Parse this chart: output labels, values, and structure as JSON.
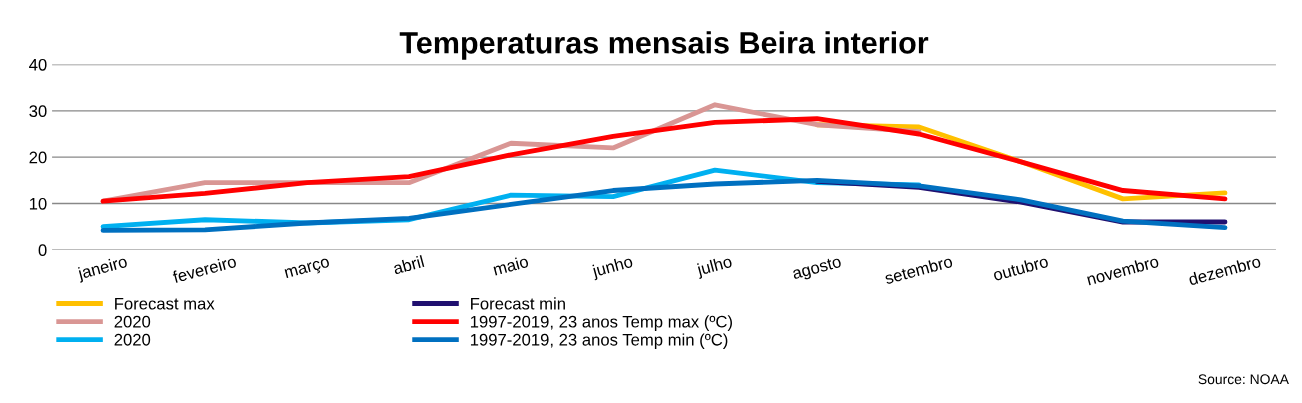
{
  "chart_data": {
    "type": "line",
    "title": "Temperaturas mensais Beira interior",
    "categories": [
      "janeiro",
      "fevereiro",
      "março",
      "abril",
      "maio",
      "junho",
      "julho",
      "agosto",
      "setembro",
      "outubro",
      "novembro",
      "dezembro"
    ],
    "series": [
      {
        "name": "Forecast max",
        "color": "#ffc000",
        "values": [
          null,
          null,
          null,
          null,
          null,
          null,
          null,
          27,
          26.5,
          19,
          11,
          12.3
        ]
      },
      {
        "name": "2020",
        "color": "#d99694",
        "values": [
          10.5,
          14.5,
          14.5,
          14.5,
          23,
          22,
          31.3,
          27,
          25.5,
          null,
          null,
          null
        ]
      },
      {
        "name": "2020",
        "color": "#00b0f0",
        "values": [
          5,
          6.5,
          5.8,
          6.5,
          11.8,
          11.5,
          17.2,
          14.5,
          14,
          null,
          null,
          null
        ]
      },
      {
        "name": "Forecast min",
        "color": "#201070",
        "values": [
          null,
          null,
          null,
          null,
          null,
          null,
          null,
          14.8,
          13.5,
          10.3,
          6,
          6
        ]
      },
      {
        "name": "1997-2019, 23 anos Temp max (ºC)",
        "color": "#ff0000",
        "values": [
          10.5,
          12.2,
          14.5,
          15.8,
          20.5,
          24.5,
          27.5,
          28.3,
          25,
          19,
          12.8,
          11
        ]
      },
      {
        "name": "1997-2019, 23 anos Temp min (ºC)",
        "color": "#0070c0",
        "values": [
          4.2,
          4.3,
          5.8,
          6.8,
          9.8,
          12.8,
          14.2,
          15,
          13.8,
          10.8,
          6.2,
          4.8
        ]
      }
    ],
    "ylim": [
      0,
      40
    ],
    "yticks": [
      0,
      10,
      20,
      30,
      40
    ],
    "grid": "y",
    "legend": "bottom",
    "marker": "none",
    "line_style": "solid",
    "annotations": [
      "Source: NOAA"
    ]
  }
}
